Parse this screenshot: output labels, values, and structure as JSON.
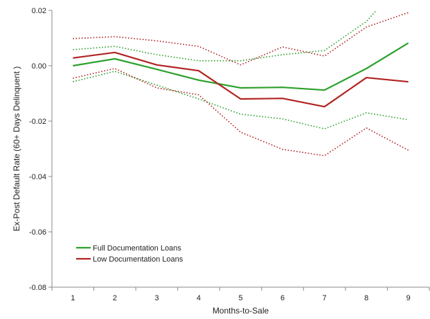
{
  "chart_data": {
    "type": "line",
    "title": "",
    "xlabel": "Months-to-Sale",
    "ylabel": "Ex-Post Default Rate (60+ Days Delinquent )",
    "x": [
      1,
      2,
      3,
      4,
      5,
      6,
      7,
      8,
      9
    ],
    "xlim": [
      0.5,
      9.5
    ],
    "ylim": [
      -0.08,
      0.02
    ],
    "yticks": [
      0.02,
      0.0,
      -0.02,
      -0.04,
      -0.06,
      -0.08
    ],
    "ytick_labels": [
      "0.02",
      "0.00",
      "-0.02",
      "-0.04",
      "-0.06",
      "-0.08"
    ],
    "xtick_labels": [
      "1",
      "2",
      "3",
      "4",
      "5",
      "6",
      "7",
      "8",
      "9"
    ],
    "grid": false,
    "legend_position": "bottom-left",
    "series": [
      {
        "name": "Full Documentation Loans",
        "color": "#2ca02c",
        "style": "solid",
        "values": [
          0.0,
          0.0025,
          -0.0013,
          -0.0052,
          -0.008,
          -0.0078,
          -0.0088,
          -0.001,
          0.0082
        ]
      },
      {
        "name": "Low Documentation Loans",
        "color": "#b22222",
        "style": "solid",
        "values": [
          0.0028,
          0.0048,
          0.0003,
          -0.0018,
          -0.012,
          -0.0118,
          -0.0148,
          -0.0043,
          -0.0058
        ]
      },
      {
        "color": "#2ca02c",
        "style": "dotted",
        "values": [
          0.0058,
          0.007,
          0.004,
          0.0018,
          0.0018,
          0.004,
          0.0055,
          0.016,
          0.033
        ]
      },
      {
        "color": "#2ca02c",
        "style": "dotted",
        "values": [
          -0.0058,
          -0.002,
          -0.007,
          -0.012,
          -0.0175,
          -0.0192,
          -0.0228,
          -0.017,
          -0.0195
        ]
      },
      {
        "color": "#b22222",
        "style": "dotted",
        "values": [
          0.0098,
          0.0105,
          0.009,
          0.007,
          0.0003,
          0.0068,
          0.0035,
          0.014,
          0.0192
        ]
      },
      {
        "color": "#b22222",
        "style": "dotted",
        "values": [
          -0.0045,
          -0.001,
          -0.008,
          -0.0105,
          -0.024,
          -0.0302,
          -0.0325,
          -0.0225,
          -0.0305
        ]
      }
    ]
  }
}
